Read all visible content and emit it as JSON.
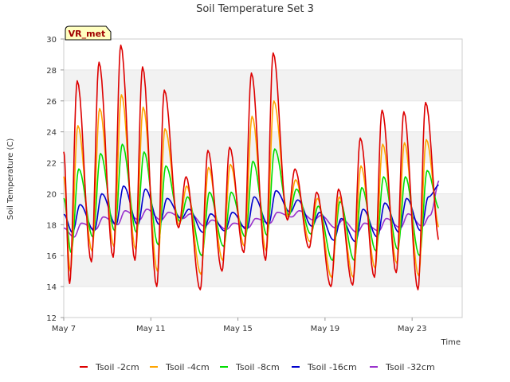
{
  "chart_data": {
    "type": "line",
    "title": "Soil Temperature Set 3",
    "xlabel": "Time",
    "ylabel": "Soil Temperature (C)",
    "badge": "VR_met",
    "ylim": [
      12,
      30
    ],
    "yticks": [
      12,
      14,
      16,
      18,
      20,
      22,
      24,
      26,
      28,
      30
    ],
    "xlim_days": [
      0,
      18.3
    ],
    "xticks": [
      {
        "day": 0,
        "label": "May 7"
      },
      {
        "day": 4,
        "label": "May 11"
      },
      {
        "day": 8,
        "label": "May 15"
      },
      {
        "day": 12,
        "label": "May 19"
      },
      {
        "day": 16,
        "label": "May 23"
      }
    ],
    "grid": "horizontal bands",
    "legend_position": "bottom",
    "series_style": [
      {
        "name": "Tsoil -2cm",
        "color": "#dd0000"
      },
      {
        "name": "Tsoil -4cm",
        "color": "#ffa500"
      },
      {
        "name": "Tsoil -8cm",
        "color": "#00dd00"
      },
      {
        "name": "Tsoil -16cm",
        "color": "#0000cc"
      },
      {
        "name": "Tsoil -32cm",
        "color": "#9932cc"
      }
    ],
    "daily": [
      {
        "date": "May 7",
        "min": [
          14.2,
          15.0,
          16.2,
          17.5,
          17.2
        ],
        "max": [
          27.3,
          24.4,
          21.6,
          19.3,
          18.1
        ]
      },
      {
        "date": "May 8",
        "min": [
          15.6,
          16.3,
          17.2,
          17.6,
          17.7
        ],
        "max": [
          28.5,
          25.5,
          22.6,
          20.0,
          18.5
        ]
      },
      {
        "date": "May 9",
        "min": [
          15.9,
          16.6,
          17.6,
          18.0,
          18.0
        ],
        "max": [
          29.6,
          26.4,
          23.2,
          20.5,
          18.9
        ]
      },
      {
        "date": "May 10",
        "min": [
          15.7,
          16.4,
          17.5,
          18.0,
          18.3
        ],
        "max": [
          28.2,
          25.6,
          22.7,
          20.3,
          19.0
        ]
      },
      {
        "date": "May 11",
        "min": [
          14.0,
          15.0,
          16.7,
          18.0,
          18.3
        ],
        "max": [
          26.7,
          24.2,
          21.8,
          19.7,
          18.8
        ]
      },
      {
        "date": "May 12",
        "min": [
          17.8,
          18.0,
          18.2,
          18.4,
          18.4
        ],
        "max": [
          21.1,
          20.5,
          19.8,
          19.0,
          18.7
        ]
      },
      {
        "date": "May 13",
        "min": [
          13.8,
          14.8,
          16.0,
          17.5,
          17.9
        ],
        "max": [
          22.8,
          21.7,
          20.1,
          18.7,
          18.3
        ]
      },
      {
        "date": "May 14",
        "min": [
          15.0,
          15.7,
          16.6,
          17.6,
          17.7
        ],
        "max": [
          23.0,
          21.9,
          20.1,
          18.8,
          18.1
        ]
      },
      {
        "date": "May 15",
        "min": [
          16.2,
          16.6,
          17.2,
          17.7,
          17.8
        ],
        "max": [
          27.8,
          25.0,
          22.1,
          19.8,
          18.4
        ]
      },
      {
        "date": "May 16",
        "min": [
          15.7,
          16.3,
          17.3,
          18.0,
          18.1
        ],
        "max": [
          29.1,
          26.0,
          22.9,
          20.2,
          18.8
        ]
      },
      {
        "date": "May 17",
        "min": [
          18.3,
          18.5,
          18.6,
          18.8,
          18.5
        ],
        "max": [
          21.6,
          20.9,
          20.3,
          19.6,
          18.9
        ]
      },
      {
        "date": "May 18",
        "min": [
          16.5,
          16.9,
          17.4,
          17.9,
          18.3
        ],
        "max": [
          20.1,
          19.7,
          19.2,
          18.8,
          18.6
        ]
      },
      {
        "date": "May 19",
        "min": [
          14.0,
          14.6,
          15.7,
          17.0,
          17.8
        ],
        "max": [
          20.3,
          19.8,
          19.5,
          18.4,
          18.3
        ]
      },
      {
        "date": "May 20",
        "min": [
          14.1,
          14.6,
          15.7,
          16.9,
          17.5
        ],
        "max": [
          23.6,
          21.8,
          20.4,
          19.0,
          18.1
        ]
      },
      {
        "date": "May 21",
        "min": [
          14.6,
          15.2,
          16.3,
          17.2,
          17.6
        ],
        "max": [
          25.4,
          23.2,
          21.1,
          19.4,
          18.4
        ]
      },
      {
        "date": "May 22",
        "min": [
          14.9,
          15.5,
          16.4,
          17.5,
          17.8
        ],
        "max": [
          25.3,
          23.3,
          21.1,
          19.7,
          18.7
        ]
      },
      {
        "date": "May 23",
        "min": [
          13.8,
          14.7,
          16.0,
          17.6,
          17.9
        ],
        "max": [
          25.9,
          23.5,
          21.5,
          19.8,
          18.6
        ]
      }
    ]
  }
}
